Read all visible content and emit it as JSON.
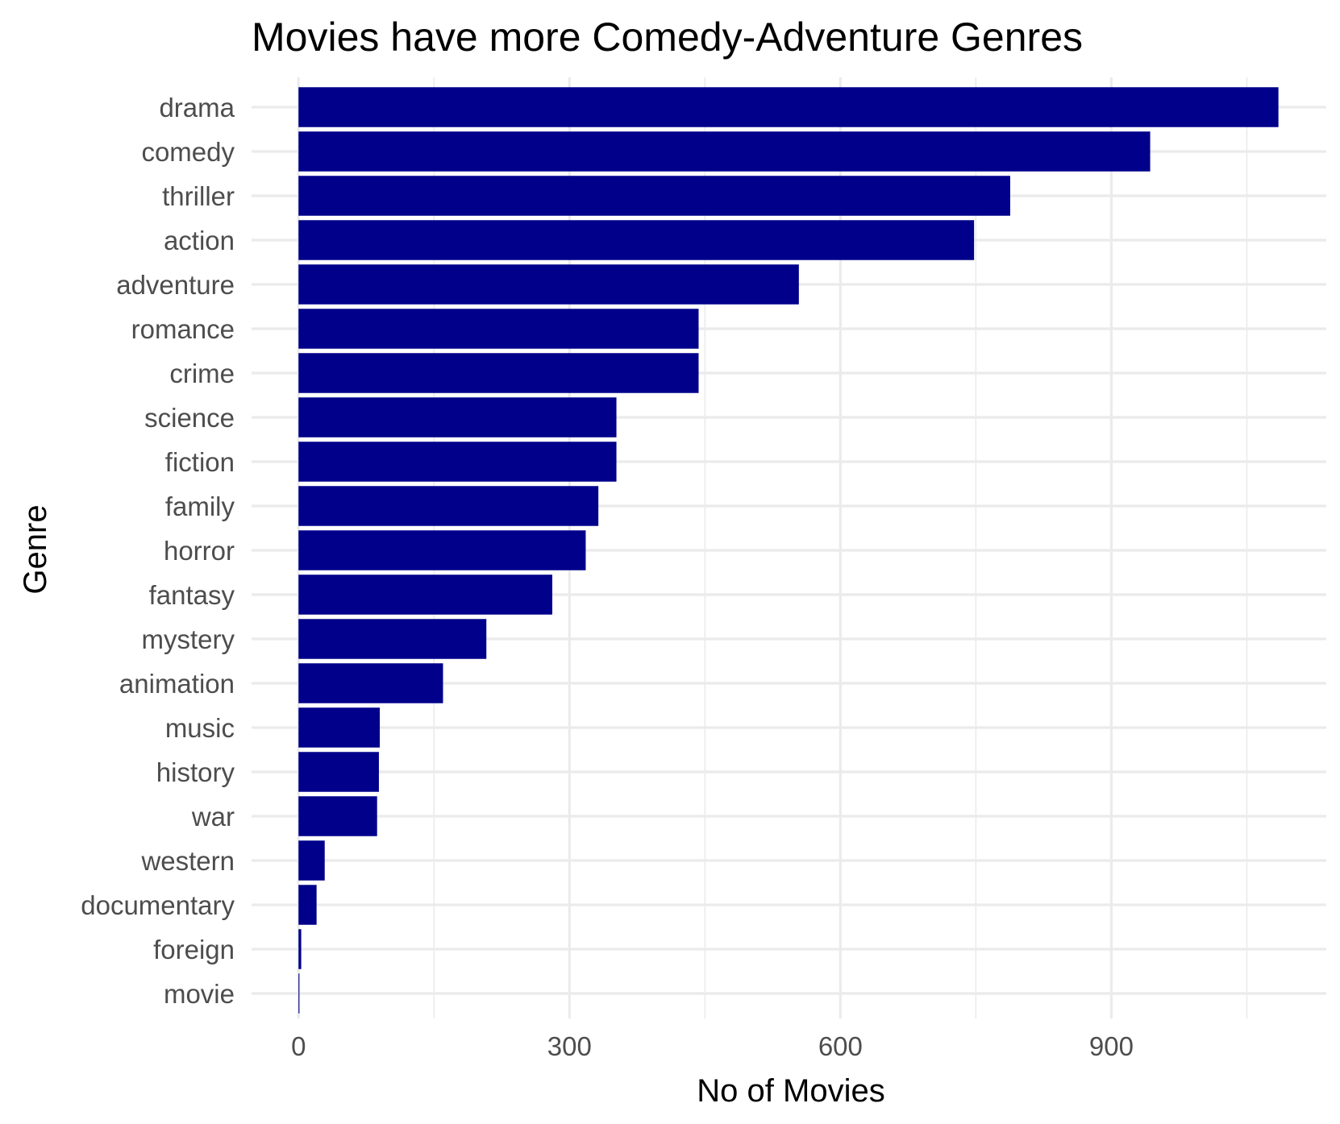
{
  "chart_data": {
    "type": "bar",
    "orientation": "horizontal",
    "title": "Movies have more Comedy-Adventure Genres",
    "xlabel": "No of Movies",
    "ylabel": "Genre",
    "categories": [
      "drama",
      "comedy",
      "thriller",
      "action",
      "adventure",
      "romance",
      "crime",
      "science",
      "fiction",
      "family",
      "horror",
      "fantasy",
      "mystery",
      "animation",
      "music",
      "history",
      "war",
      "western",
      "documentary",
      "foreign",
      "movie"
    ],
    "values": [
      1085,
      943,
      788,
      748,
      554,
      443,
      443,
      352,
      352,
      332,
      318,
      281,
      208,
      160,
      90,
      89,
      87,
      29,
      20,
      3,
      1
    ],
    "xlim": [
      -52,
      1138
    ],
    "xticks": [
      0,
      300,
      600,
      900
    ],
    "xtick_labels": [
      "0",
      "300",
      "600",
      "900"
    ],
    "bar_color": "#00008B",
    "grid": true,
    "legend": "none"
  }
}
